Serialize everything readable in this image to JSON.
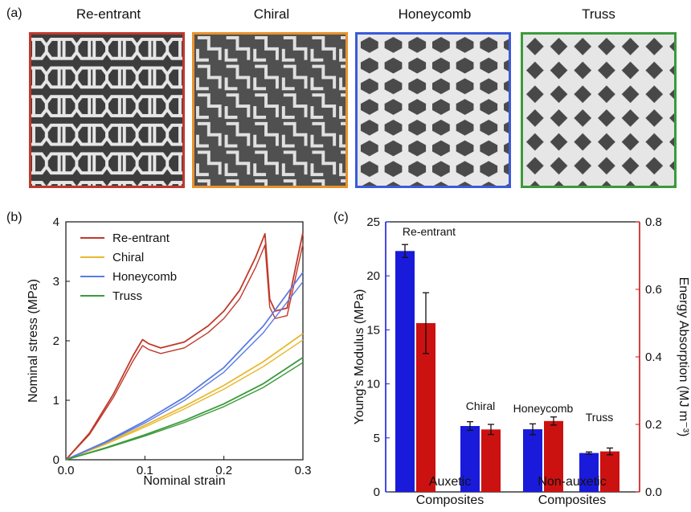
{
  "panel_labels": {
    "a": "(a)",
    "b": "(b)",
    "c": "(c)"
  },
  "photos": [
    {
      "title": "Re-entrant",
      "border": "#c0392b"
    },
    {
      "title": "Chiral",
      "border": "#e8922e"
    },
    {
      "title": "Honeycomb",
      "border": "#3a5bd9"
    },
    {
      "title": "Truss",
      "border": "#3c9a3c"
    }
  ],
  "chart_data": [
    {
      "type": "line",
      "xlabel": "Nominal strain",
      "ylabel": "Nominal stress (MPa)",
      "xlim": [
        0,
        0.3
      ],
      "ylim": [
        0,
        4
      ],
      "xticks": [
        "0.0",
        "0.1",
        "0.2",
        "0.3"
      ],
      "yticks": [
        "0",
        "1",
        "2",
        "3",
        "4"
      ],
      "legend_position": "top-left",
      "series": [
        {
          "name": "Re-entrant",
          "color": "#c0392b",
          "x": [
            0,
            0.03,
            0.06,
            0.085,
            0.097,
            0.105,
            0.12,
            0.15,
            0.18,
            0.2,
            0.22,
            0.24,
            0.252,
            0.258,
            0.265,
            0.28,
            0.3
          ],
          "y": [
            0,
            0.45,
            1.1,
            1.75,
            2.02,
            1.95,
            1.88,
            1.98,
            2.25,
            2.5,
            2.85,
            3.4,
            3.8,
            2.7,
            2.5,
            2.55,
            3.82
          ]
        },
        {
          "name": "Chiral",
          "color": "#e8b830",
          "x": [
            0,
            0.05,
            0.1,
            0.15,
            0.2,
            0.25,
            0.3
          ],
          "y": [
            0,
            0.27,
            0.58,
            0.9,
            1.25,
            1.65,
            2.12
          ]
        },
        {
          "name": "Honeycomb",
          "color": "#5b7be3",
          "x": [
            0,
            0.05,
            0.1,
            0.15,
            0.2,
            0.25,
            0.3
          ],
          "y": [
            0,
            0.3,
            0.65,
            1.05,
            1.55,
            2.25,
            3.15
          ]
        },
        {
          "name": "Truss",
          "color": "#3c9a3c",
          "x": [
            0,
            0.05,
            0.1,
            0.15,
            0.2,
            0.25,
            0.3
          ],
          "y": [
            0,
            0.2,
            0.42,
            0.66,
            0.94,
            1.28,
            1.72
          ]
        }
      ]
    },
    {
      "type": "bar",
      "categories": [
        "Re-entrant",
        "Chiral",
        "Honeycomb",
        "Truss"
      ],
      "group_labels": [
        [
          "Auxetic",
          "Composites"
        ],
        [
          "Non-auxetic",
          "Composites"
        ]
      ],
      "ylabel": "Young's Modulus (MPa)",
      "y2label": "Energy Absorption (MJ m⁻³)",
      "ylim": [
        0,
        25
      ],
      "y2lim": [
        0,
        0.8
      ],
      "yticks": [
        "0",
        "5",
        "10",
        "15",
        "20",
        "25"
      ],
      "y2ticks": [
        "0.0",
        "0.2",
        "0.4",
        "0.6",
        "0.8"
      ],
      "series": [
        {
          "axis": "left",
          "color": "#1a1adb",
          "values": [
            22.3,
            6.1,
            5.8,
            3.6
          ],
          "errors": [
            0.6,
            0.4,
            0.5,
            0.1
          ]
        },
        {
          "axis": "right",
          "color": "#cc1111",
          "values": [
            0.5,
            0.185,
            0.21,
            0.12
          ],
          "errors": [
            0.09,
            0.015,
            0.012,
            0.01
          ]
        }
      ]
    }
  ]
}
